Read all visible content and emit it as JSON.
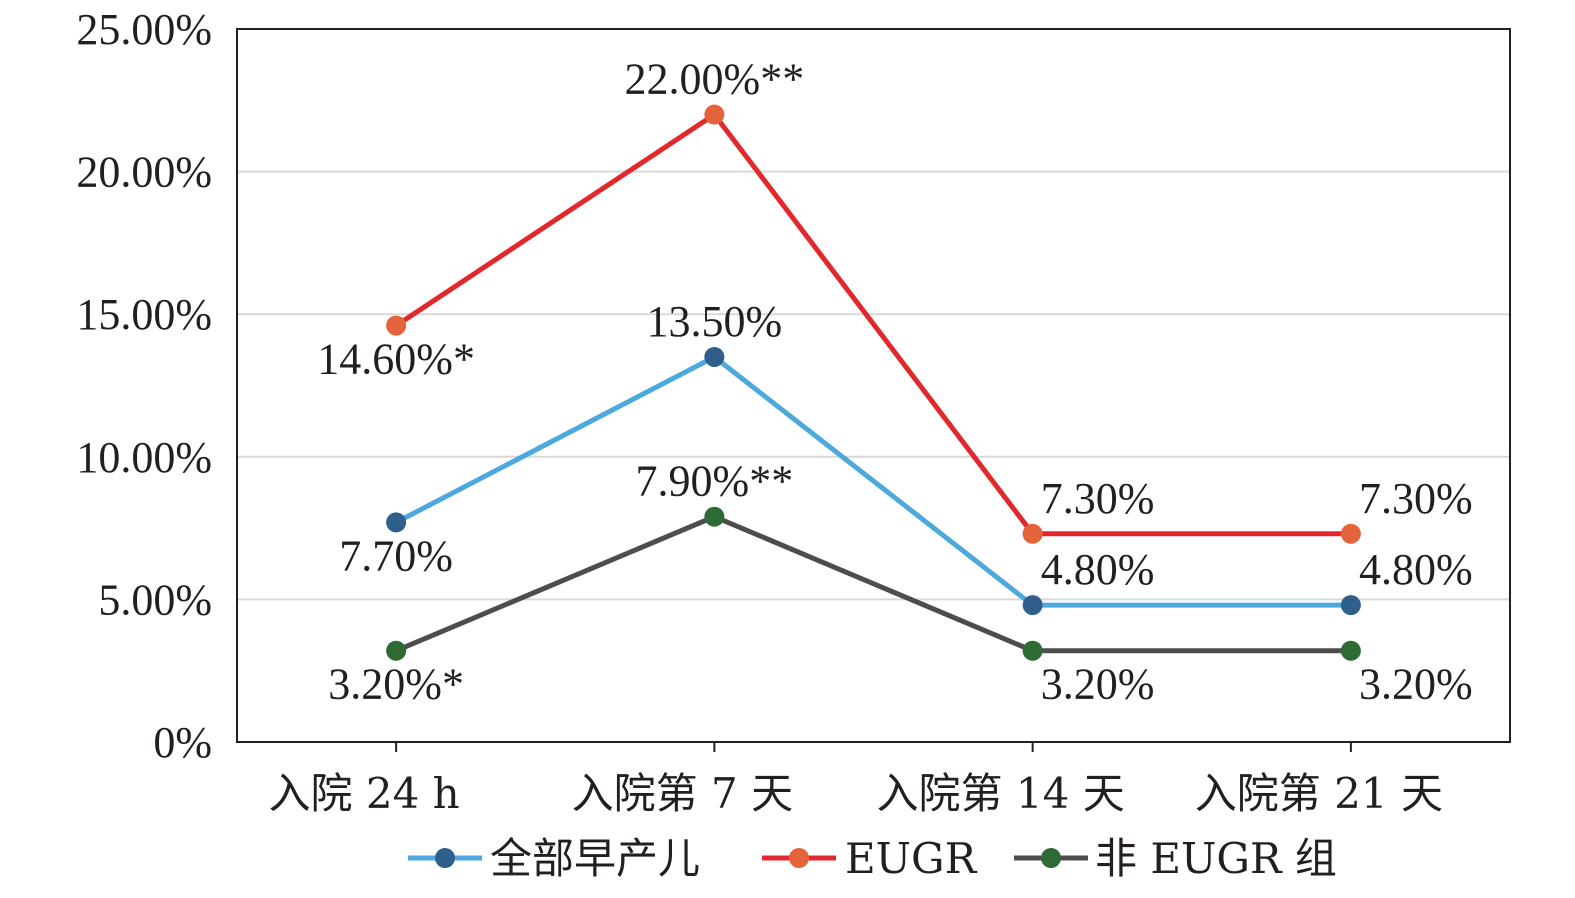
{
  "chart_data": {
    "type": "line",
    "title": "",
    "xlabel": "",
    "ylabel": "",
    "ylim": [
      0,
      25
    ],
    "grid": true,
    "legend_position": "bottom",
    "y_ticks": [
      {
        "value": 0,
        "label": "0%"
      },
      {
        "value": 5,
        "label": "5.00%"
      },
      {
        "value": 10,
        "label": "10.00%"
      },
      {
        "value": 15,
        "label": "15.00%"
      },
      {
        "value": 20,
        "label": "20.00%"
      },
      {
        "value": 25,
        "label": "25.00%"
      }
    ],
    "categories": [
      "入院 24 h",
      "入院第 7 天",
      "入院第 14 天",
      "入院第 21 天"
    ],
    "series": [
      {
        "name": "全部早产儿",
        "line_color": "#4da9dd",
        "marker_color": "#2f5f8a",
        "values": [
          7.7,
          13.5,
          4.8,
          4.8
        ],
        "labels": [
          "7.70%",
          "13.50%",
          "4.80%",
          "4.80%"
        ],
        "label_side": [
          "below",
          "above",
          "above",
          "above"
        ]
      },
      {
        "name": "EUGR",
        "line_color": "#e3282d",
        "marker_color": "#e4633a",
        "values": [
          14.6,
          22.0,
          7.3,
          7.3
        ],
        "labels": [
          "14.60%*",
          "22.00%**",
          "7.30%",
          "7.30%"
        ],
        "label_side": [
          "below",
          "above",
          "above",
          "above"
        ]
      },
      {
        "name": "非 EUGR 组",
        "line_color": "#4d4d4d",
        "marker_color": "#2e6b34",
        "values": [
          3.2,
          7.9,
          3.2,
          3.2
        ],
        "labels": [
          "3.20%*",
          "7.90%**",
          "3.20%",
          "3.20%"
        ],
        "label_side": [
          "below",
          "above",
          "below",
          "below"
        ]
      }
    ]
  }
}
